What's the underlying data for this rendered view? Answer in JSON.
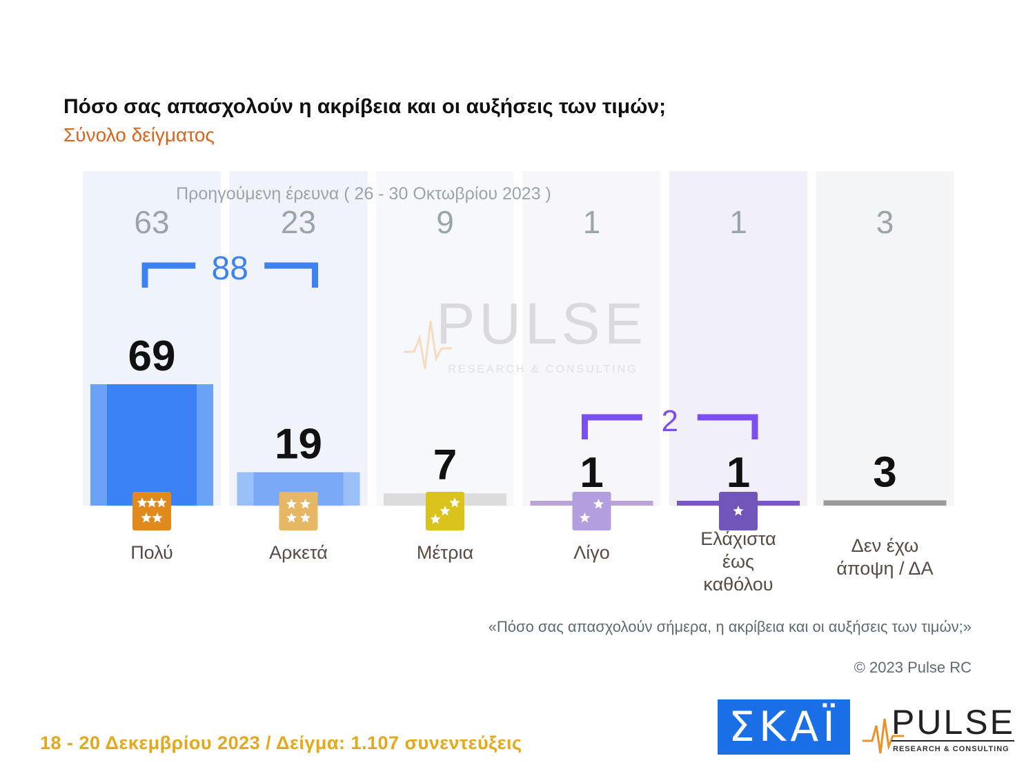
{
  "header": {
    "title": "Πόσο σας απασχολούν η ακρίβεια και οι αυξήσεις των τιμών;",
    "subtitle": "Σύνολο δείγματος"
  },
  "chart_data": {
    "type": "bar",
    "categories": [
      "Πολύ",
      "Αρκετά",
      "Μέτρια",
      "Λίγο",
      "Ελάχιστα έως καθόλου",
      "Δεν έχω άποψη / ΔΑ"
    ],
    "category_lines": [
      [
        "Πολύ"
      ],
      [
        "Αρκετά"
      ],
      [
        "Μέτρια"
      ],
      [
        "Λίγο"
      ],
      [
        "Ελάχιστα",
        "έως",
        "καθόλου"
      ],
      [
        "Δεν έχω",
        "άποψη / ΔΑ"
      ]
    ],
    "series": [
      {
        "name": "Προηγούμενη έρευνα ( 26 - 30 Οκτωβρίου 2023 )",
        "values": [
          63,
          23,
          9,
          1,
          1,
          3
        ]
      },
      {
        "values": [
          69,
          19,
          7,
          1,
          1,
          3
        ]
      }
    ],
    "groups": [
      {
        "label": "88",
        "from": 0,
        "to": 1,
        "color": "#3d82f0"
      },
      {
        "label": "2",
        "from": 3,
        "to": 4,
        "color": "#7b4ef2"
      }
    ],
    "ylim": [
      0,
      100
    ],
    "column_colors": [
      "#3b82f6",
      "#7aaaf7",
      "#dcdcdc",
      "#b9a3d9",
      "#7a55c4",
      "#9a9a9a"
    ],
    "column_backgrounds": [
      "#eff4fc",
      "#f1f3fa",
      "#f7f8fb",
      "#f7f6fb",
      "#f1f0f9",
      "#f4f5f7"
    ],
    "icons": [
      {
        "name": "five-star-icon",
        "color": "#e08a1e"
      },
      {
        "name": "four-star-icon",
        "color": "#e6b764"
      },
      {
        "name": "three-star-icon",
        "color": "#d9c31c"
      },
      {
        "name": "two-star-icon",
        "color": "#b39ee0"
      },
      {
        "name": "one-star-icon",
        "color": "#7155b8"
      }
    ]
  },
  "watermark": {
    "brand": "PULSE",
    "tagline": "RESEARCH & CONSULTING"
  },
  "notes": {
    "question": "«Πόσο σας απασχολούν σήμερα, η ακρίβεια και οι αυξήσεις των τιμών;»",
    "copyright": "© 2023 Pulse RC"
  },
  "footer": {
    "text": "18 - 20  Δεκεμβρίου  2023  /  Δείγμα:  1.107 συνεντεύξεις"
  },
  "logos": {
    "skai": "ΣΚΑΪ",
    "pulse": "PULSE",
    "pulse_tagline": "RESEARCH & CONSULTING"
  }
}
